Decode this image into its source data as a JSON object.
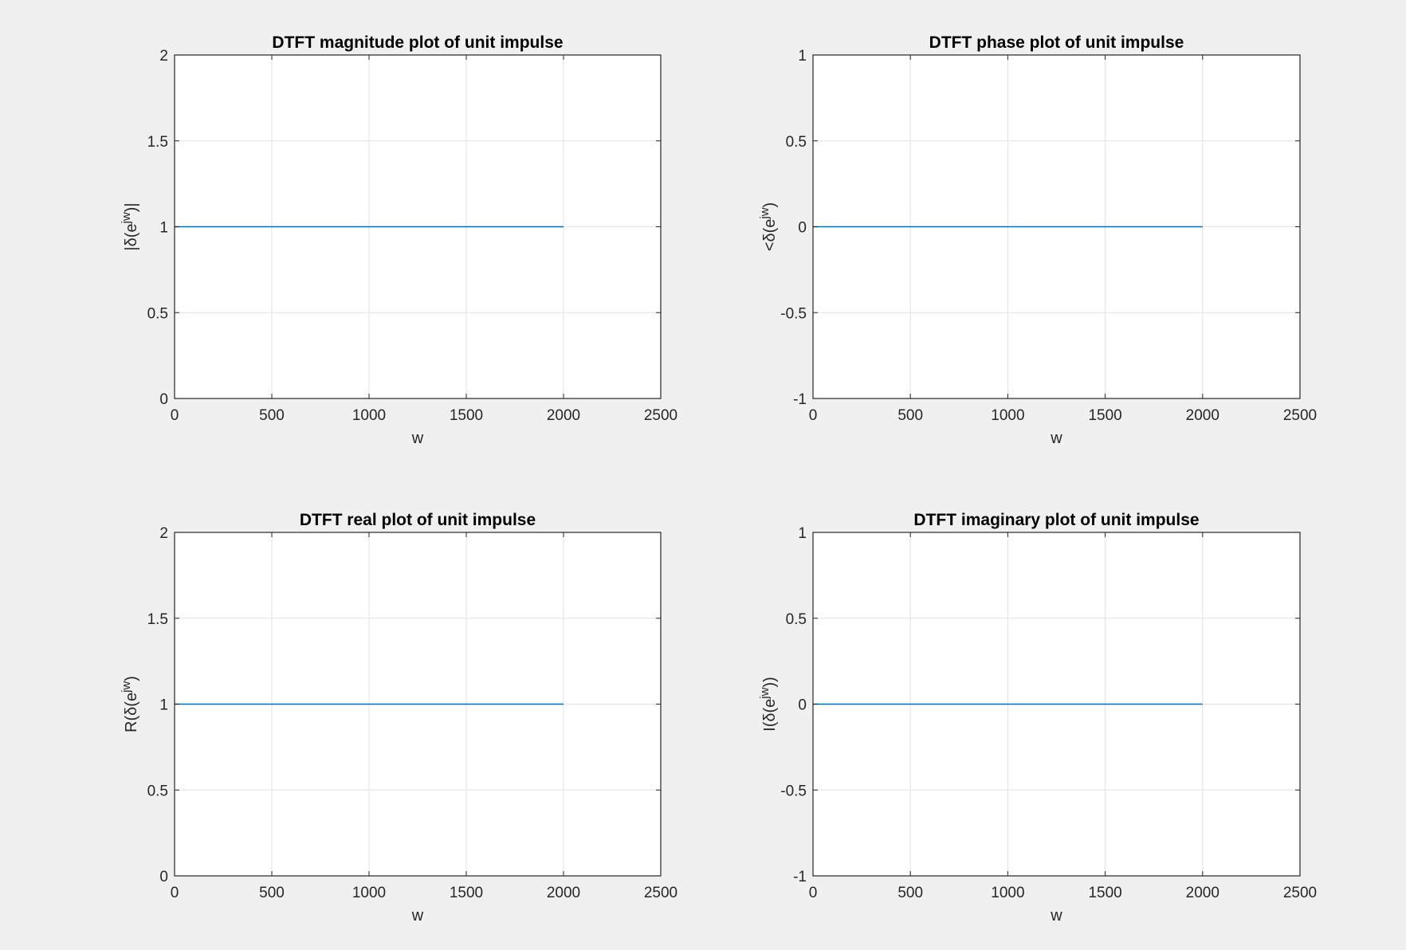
{
  "figure": {
    "background": "#f0f0f0",
    "line_color": "#0072BD"
  },
  "chart_data": [
    {
      "type": "line",
      "title": "DTFT magnitude plot of unit impulse",
      "xlabel": "w",
      "ylabel": "|δ(e^{jw})|",
      "xlim": [
        0,
        2500
      ],
      "ylim": [
        0,
        2
      ],
      "xticks": [
        "0",
        "500",
        "1000",
        "1500",
        "2000",
        "2500"
      ],
      "yticks": [
        "0",
        "0.5",
        "1",
        "1.5",
        "2"
      ],
      "grid": true,
      "series": [
        {
          "x": [
            0,
            2000
          ],
          "y": [
            1,
            1
          ]
        }
      ]
    },
    {
      "type": "line",
      "title": "DTFT phase plot of unit impulse",
      "xlabel": "w",
      "ylabel": "<δ(e^{jw})",
      "xlim": [
        0,
        2500
      ],
      "ylim": [
        -1,
        1
      ],
      "xticks": [
        "0",
        "500",
        "1000",
        "1500",
        "2000",
        "2500"
      ],
      "yticks": [
        "-1",
        "-0.5",
        "0",
        "0.5",
        "1"
      ],
      "grid": true,
      "series": [
        {
          "x": [
            0,
            2000
          ],
          "y": [
            0,
            0
          ]
        }
      ]
    },
    {
      "type": "line",
      "title": "DTFT real plot of unit impulse",
      "xlabel": "w",
      "ylabel": "R(δ(e^{jw})",
      "xlim": [
        0,
        2500
      ],
      "ylim": [
        0,
        2
      ],
      "xticks": [
        "0",
        "500",
        "1000",
        "1500",
        "2000",
        "2500"
      ],
      "yticks": [
        "0",
        "0.5",
        "1",
        "1.5",
        "2"
      ],
      "grid": true,
      "series": [
        {
          "x": [
            0,
            2000
          ],
          "y": [
            1,
            1
          ]
        }
      ]
    },
    {
      "type": "line",
      "title": "DTFT imaginary plot of unit impulse",
      "xlabel": "w",
      "ylabel": "I(δ(e^{jw}))",
      "xlim": [
        0,
        2500
      ],
      "ylim": [
        -1,
        1
      ],
      "xticks": [
        "0",
        "500",
        "1000",
        "1500",
        "2000",
        "2500"
      ],
      "yticks": [
        "-1",
        "-0.5",
        "0",
        "0.5",
        "1"
      ],
      "grid": true,
      "series": [
        {
          "x": [
            0,
            2000
          ],
          "y": [
            0,
            0
          ]
        }
      ]
    }
  ]
}
